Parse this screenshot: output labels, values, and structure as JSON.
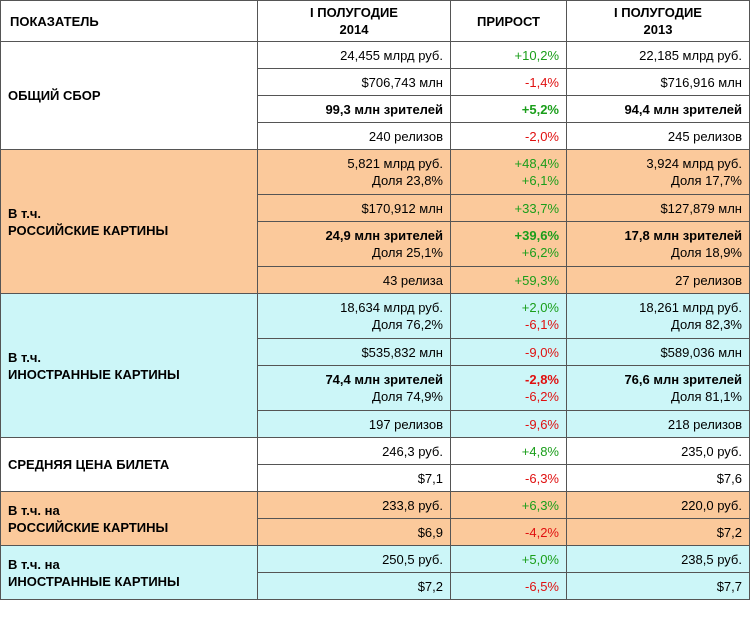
{
  "header": {
    "label": "ПОКАЗАТЕЛЬ",
    "h2014": [
      "I ПОЛУГОДИЕ",
      "2014"
    ],
    "growth": "ПРИРОСТ",
    "h2013": [
      "I ПОЛУГОДИЕ",
      "2013"
    ]
  },
  "colors": {
    "positive": "#1a9e1a",
    "negative": "#e01010",
    "russian_bg": "#fbc99b",
    "foreign_bg": "#ccf6f8"
  },
  "groups": [
    {
      "label": [
        "ОБЩИЙ СБОР"
      ],
      "rows": [
        {
          "v2014": [
            "24,455 млрд руб."
          ],
          "growth": [
            "+10,2%"
          ],
          "v2013": [
            "22,185 млрд руб."
          ]
        },
        {
          "v2014": [
            "$706,743 млн"
          ],
          "growth": [
            "-1,4%"
          ],
          "v2013": [
            "$716,916 млн"
          ]
        },
        {
          "v2014": [
            "99,3 млн зрителей"
          ],
          "growth": [
            "+5,2%"
          ],
          "v2013": [
            "94,4 млн зрителей"
          ]
        },
        {
          "v2014": [
            "240 релизов"
          ],
          "growth": [
            "-2,0%"
          ],
          "v2013": [
            "245 релизов"
          ]
        }
      ]
    },
    {
      "label": [
        "В т.ч.",
        "РОССИЙСКИЕ КАРТИНЫ"
      ],
      "rows": [
        {
          "v2014": [
            "5,821 млрд руб.",
            "Доля 23,8%"
          ],
          "growth": [
            "+48,4%",
            "+6,1%"
          ],
          "v2013": [
            "3,924 млрд руб.",
            "Доля 17,7%"
          ]
        },
        {
          "v2014": [
            "$170,912 млн"
          ],
          "growth": [
            "+33,7%"
          ],
          "v2013": [
            "$127,879 млн"
          ]
        },
        {
          "v2014": [
            "24,9 млн зрителей",
            "Доля 25,1%"
          ],
          "growth": [
            "+39,6%",
            "+6,2%"
          ],
          "v2013": [
            "17,8 млн зрителей",
            "Доля 18,9%"
          ]
        },
        {
          "v2014": [
            "43 релиза"
          ],
          "growth": [
            "+59,3%"
          ],
          "v2013": [
            "27 релизов"
          ]
        }
      ]
    },
    {
      "label": [
        "В т.ч.",
        "ИНОСТРАННЫЕ КАРТИНЫ"
      ],
      "rows": [
        {
          "v2014": [
            "18,634 млрд руб.",
            "Доля 76,2%"
          ],
          "growth": [
            "+2,0%",
            "-6,1%"
          ],
          "v2013": [
            "18,261 млрд руб.",
            "Доля 82,3%"
          ]
        },
        {
          "v2014": [
            "$535,832 млн"
          ],
          "growth": [
            "-9,0%"
          ],
          "v2013": [
            "$589,036 млн"
          ]
        },
        {
          "v2014": [
            "74,4 млн зрителей",
            "Доля 74,9%"
          ],
          "growth": [
            "-2,8%",
            "-6,2%"
          ],
          "v2013": [
            "76,6 млн зрителей",
            "Доля 81,1%"
          ]
        },
        {
          "v2014": [
            "197 релизов"
          ],
          "growth": [
            "-9,6%"
          ],
          "v2013": [
            "218 релизов"
          ]
        }
      ]
    },
    {
      "label": [
        "СРЕДНЯЯ ЦЕНА БИЛЕТА"
      ],
      "rows": [
        {
          "v2014": [
            "246,3 руб."
          ],
          "growth": [
            "+4,8%"
          ],
          "v2013": [
            "235,0 руб."
          ]
        },
        {
          "v2014": [
            "$7,1"
          ],
          "growth": [
            "-6,3%"
          ],
          "v2013": [
            "$7,6"
          ]
        }
      ]
    },
    {
      "label": [
        "В т.ч. на",
        "РОССИЙСКИЕ КАРТИНЫ"
      ],
      "rows": [
        {
          "v2014": [
            "233,8 руб."
          ],
          "growth": [
            "+6,3%"
          ],
          "v2013": [
            "220,0 руб."
          ]
        },
        {
          "v2014": [
            "$6,9"
          ],
          "growth": [
            "-4,2%"
          ],
          "v2013": [
            "$7,2"
          ]
        }
      ]
    },
    {
      "label": [
        "В т.ч. на",
        "ИНОСТРАННЫЕ КАРТИНЫ"
      ],
      "rows": [
        {
          "v2014": [
            "250,5 руб."
          ],
          "growth": [
            "+5,0%"
          ],
          "v2013": [
            "238,5 руб."
          ]
        },
        {
          "v2014": [
            "$7,2"
          ],
          "growth": [
            "-6,5%"
          ],
          "v2013": [
            "$7,7"
          ]
        }
      ]
    }
  ]
}
